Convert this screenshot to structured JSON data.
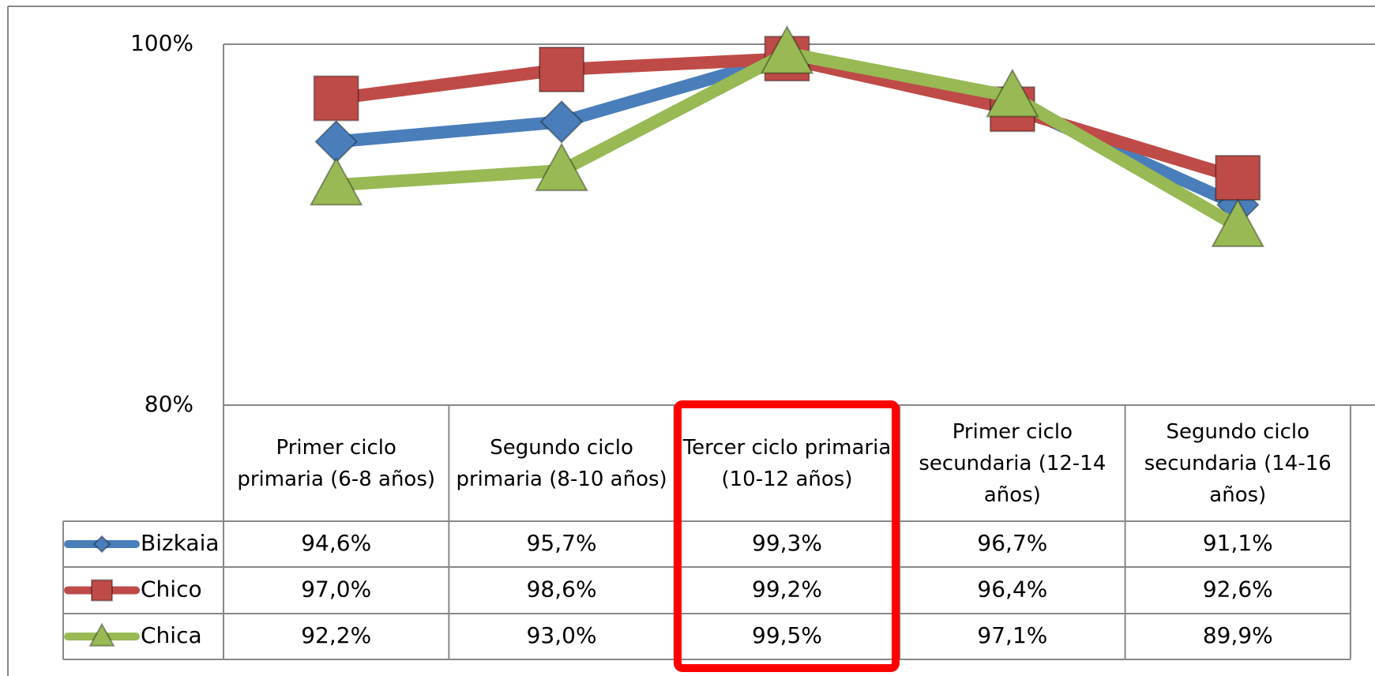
{
  "chart_data": {
    "type": "line",
    "categories": [
      "Primer ciclo primaria (6-8 años)",
      "Segundo ciclo primaria (8-10 años)",
      "Tercer ciclo primaria (10-12 años)",
      "Primer ciclo secundaria (12-14 años)",
      "Segundo ciclo secundaria (14-16 años)"
    ],
    "series": [
      {
        "name": "Bizkaia",
        "color": "#4a7ebb",
        "marker": "diamond",
        "values": [
          94.6,
          95.7,
          99.3,
          96.7,
          91.1
        ],
        "value_labels": [
          "94,6%",
          "95,7%",
          "99,3%",
          "96,7%",
          "91,1%"
        ]
      },
      {
        "name": "Chico",
        "color": "#be4b48",
        "marker": "square",
        "values": [
          97.0,
          98.6,
          99.2,
          96.4,
          92.6
        ],
        "value_labels": [
          "97,0%",
          "98,6%",
          "99,2%",
          "96,4%",
          "92,6%"
        ]
      },
      {
        "name": "Chica",
        "color": "#98b954",
        "marker": "triangle",
        "values": [
          92.2,
          93.0,
          99.5,
          97.1,
          89.9
        ],
        "value_labels": [
          "92,2%",
          "93,0%",
          "99,5%",
          "97,1%",
          "89,9%"
        ]
      }
    ],
    "ylim": [
      80,
      100
    ],
    "yticks": [
      {
        "value": 80,
        "label": "80%"
      },
      {
        "value": 100,
        "label": "100%"
      }
    ],
    "grid": true
  }
}
